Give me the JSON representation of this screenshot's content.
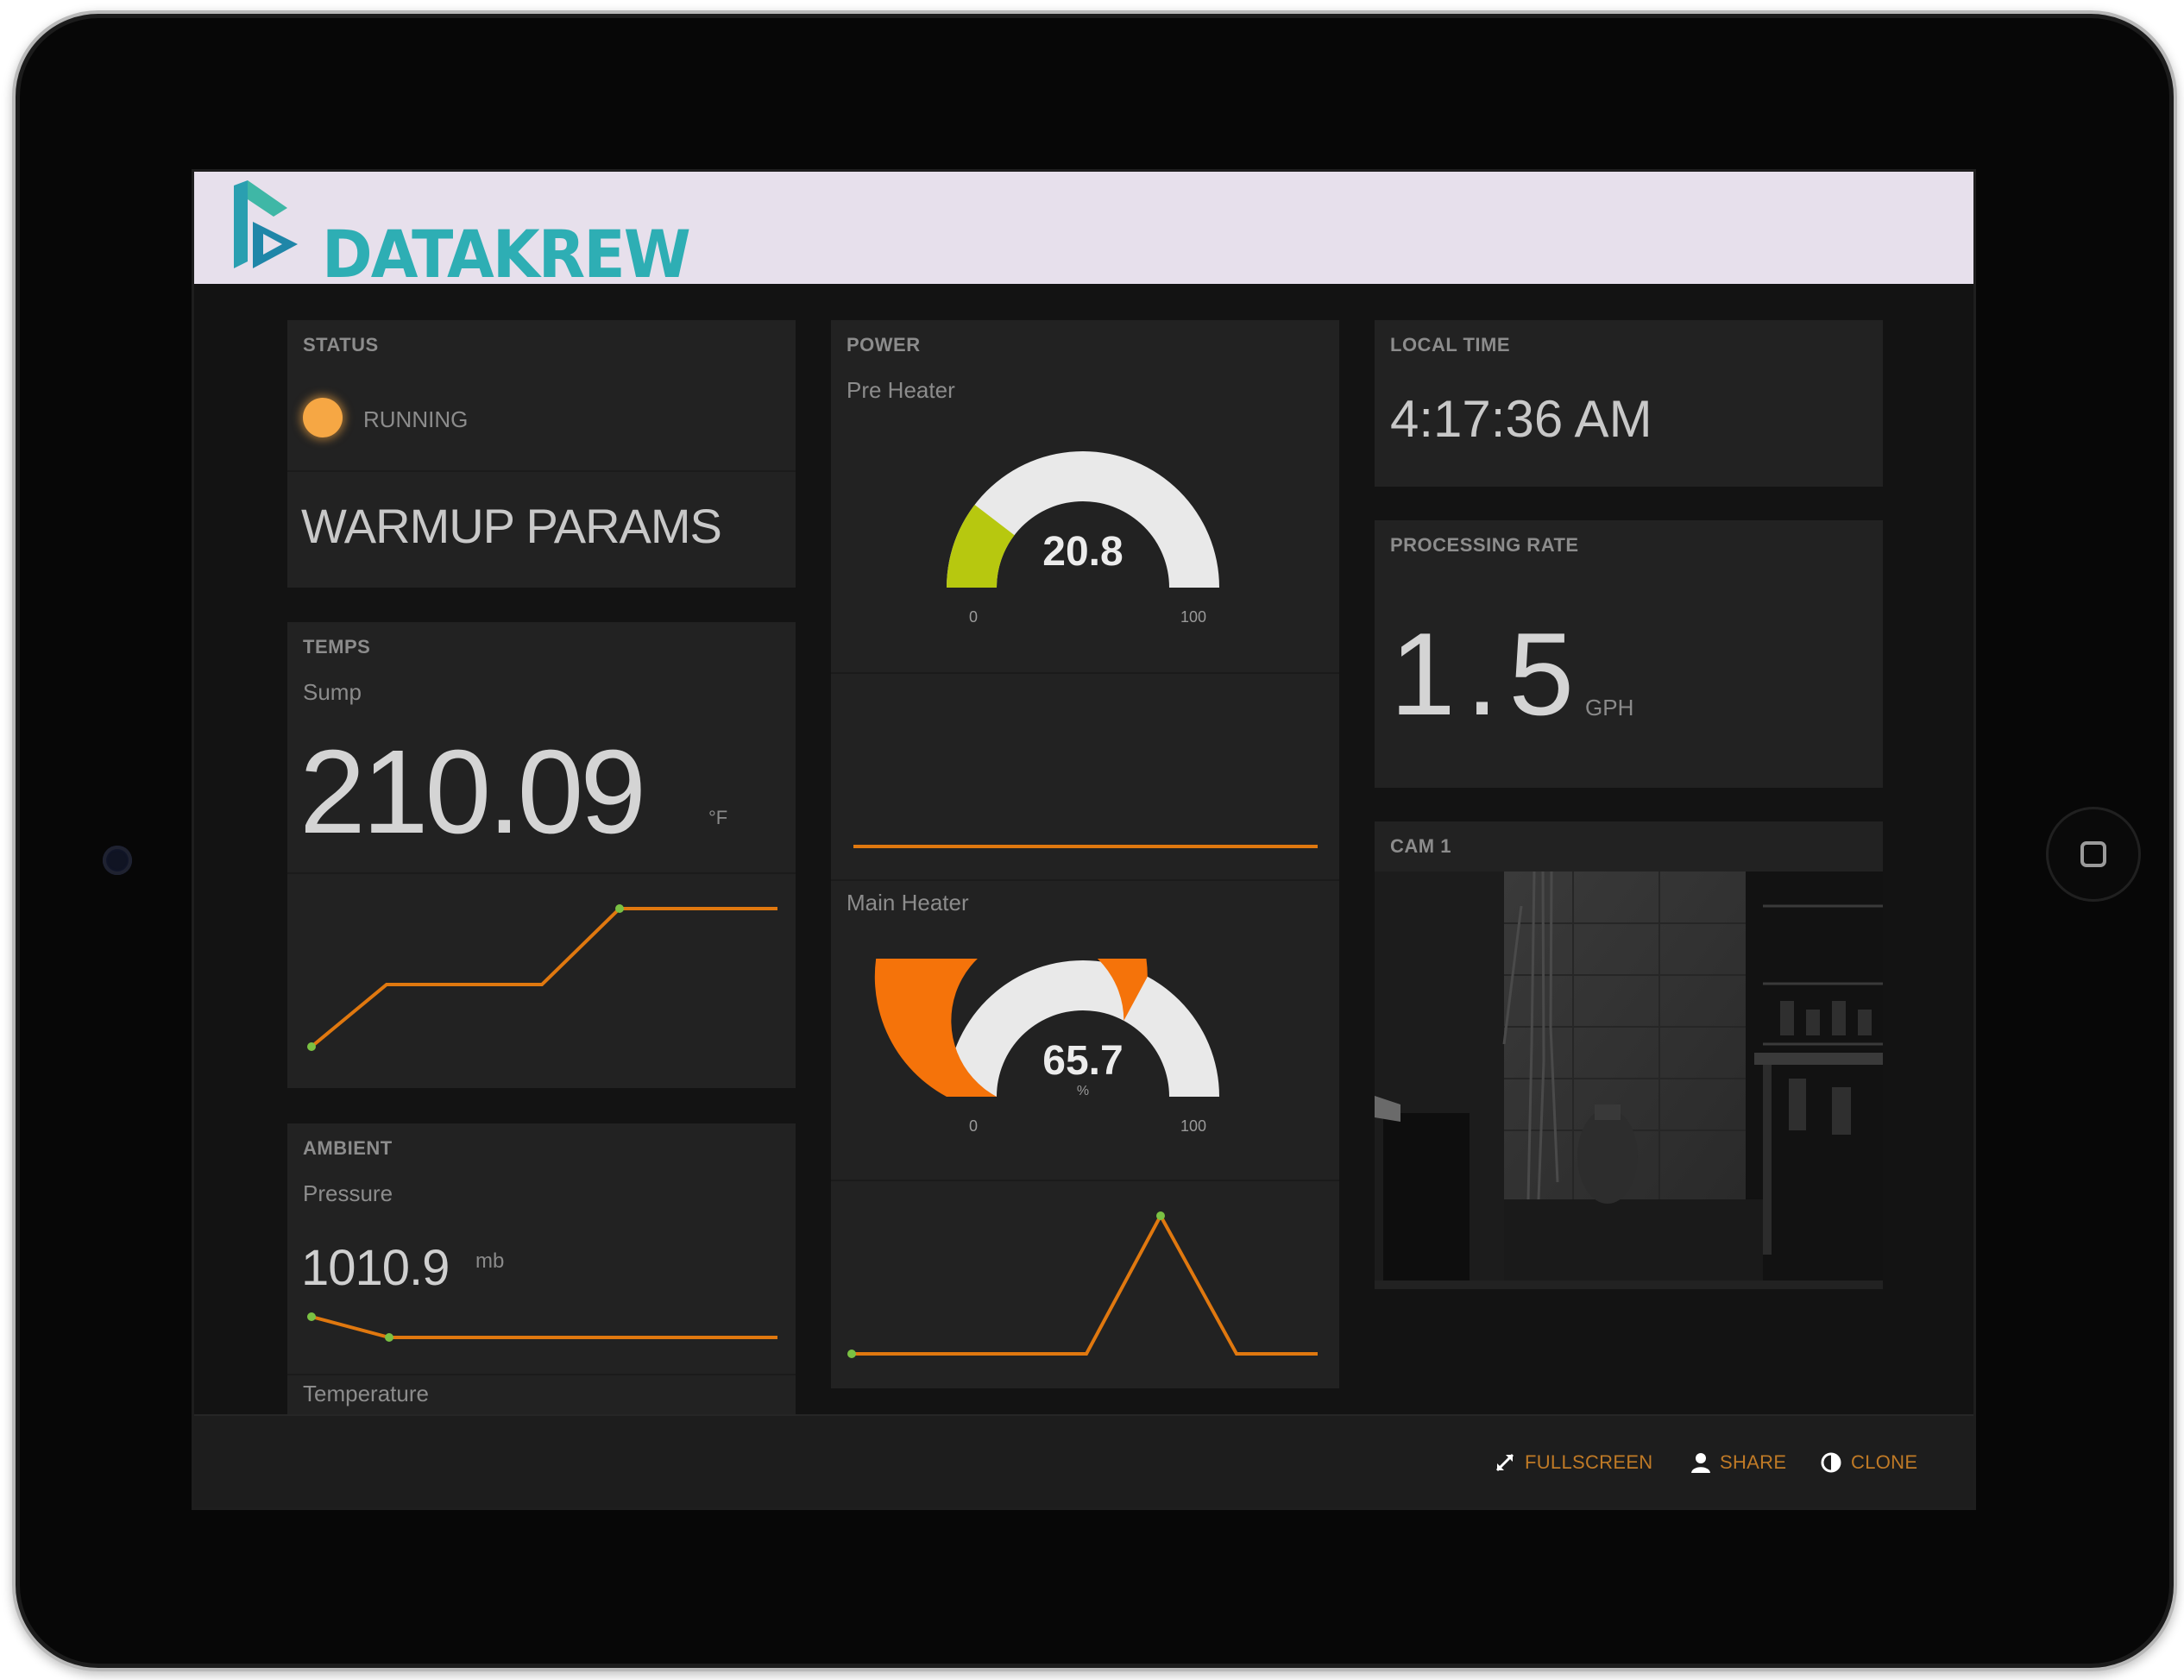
{
  "brand": {
    "name": "DATAKREW"
  },
  "status": {
    "title": "STATUS",
    "indicator_label": "RUNNING",
    "indicator_color": "#f6a744",
    "message": "WARMUP PARAMS"
  },
  "temps": {
    "title": "TEMPS",
    "sensor_label": "Sump",
    "value": "210.09",
    "units": "°F",
    "sparkline": [
      0.0,
      0.45,
      0.45,
      1.0,
      1.0
    ]
  },
  "ambient": {
    "title": "AMBIENT",
    "pressure_label": "Pressure",
    "pressure_value": "1010.9",
    "pressure_units": "mb",
    "pressure_sparkline": [
      1.0,
      0.0,
      0.0,
      0.0
    ],
    "temperature_label": "Temperature"
  },
  "power": {
    "title": "POWER",
    "pre_heater": {
      "label": "Pre Heater",
      "value": "20.8",
      "min": "0",
      "max": "100",
      "fraction": 0.208,
      "color": "#b7c80f",
      "sparkline": [
        0.5,
        0.5
      ]
    },
    "main_heater": {
      "label": "Main Heater",
      "value": "65.7",
      "units": "%",
      "min": "0",
      "max": "100",
      "fraction": 0.657,
      "color": "#f5730a",
      "sparkline": [
        0.0,
        0.0,
        1.0,
        0.0,
        0.0
      ]
    }
  },
  "local_time": {
    "title": "LOCAL TIME",
    "value": "4:17:36 AM"
  },
  "processing_rate": {
    "title": "PROCESSING RATE",
    "value": "1.5",
    "units": "GPH"
  },
  "camera": {
    "title": "CAM 1"
  },
  "toolbar": {
    "fullscreen_label": "FULLSCREEN",
    "share_label": "SHARE",
    "clone_label": "CLONE"
  },
  "colors": {
    "accent": "#c07a26",
    "sparkline": "#e0780f",
    "sparkline_point": "#7ac143",
    "gauge_track": "#e9e9e9",
    "panel": "#222222",
    "brand_bar": "#e7e0ec",
    "logo": "#2eaeb4"
  }
}
